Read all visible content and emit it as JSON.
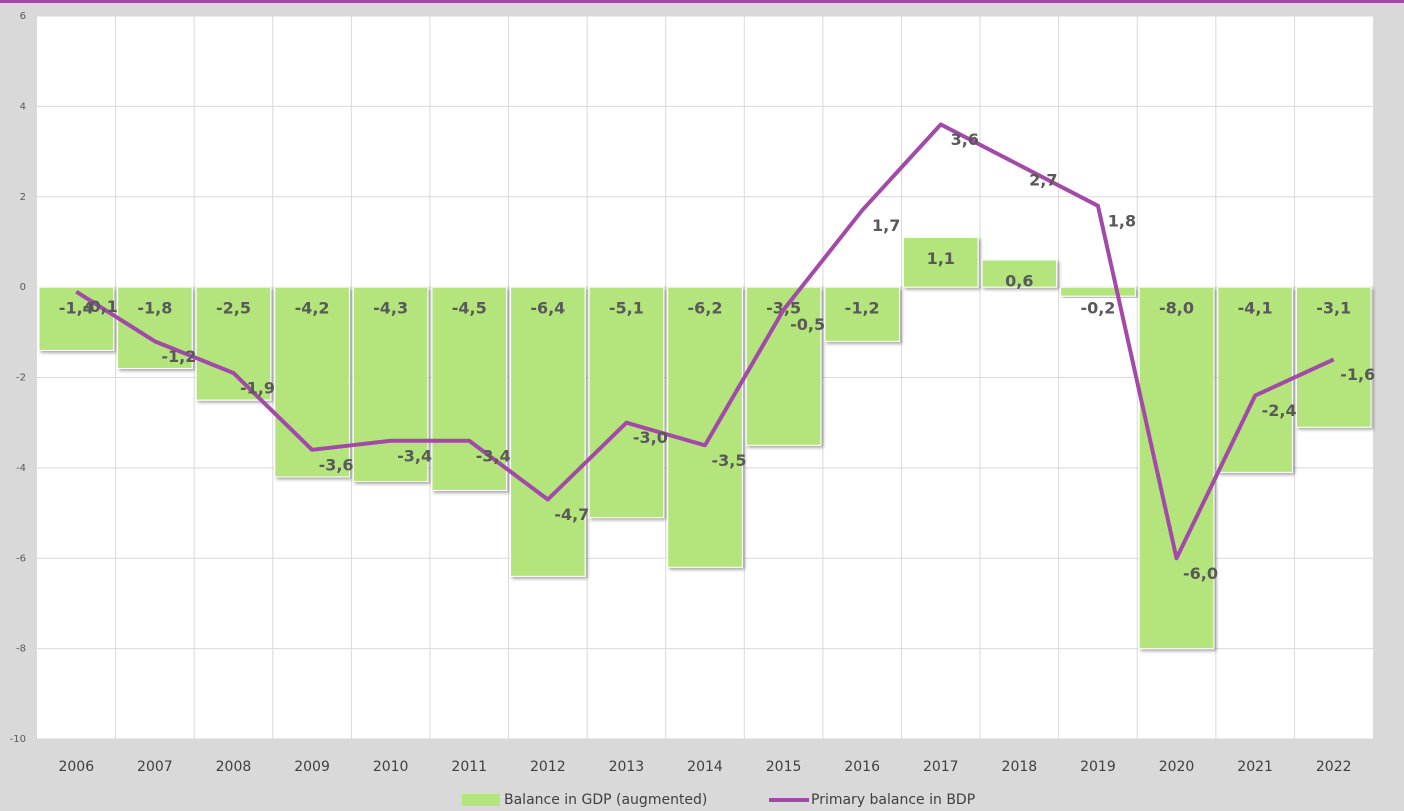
{
  "chart_data": {
    "type": "combo",
    "categories": [
      "2006",
      "2007",
      "2008",
      "2009",
      "2010",
      "2011",
      "2012",
      "2013",
      "2014",
      "2015",
      "2016",
      "2017",
      "2018",
      "2019",
      "2020",
      "2021",
      "2022"
    ],
    "series": [
      {
        "name": "Balance in GDP (augmented)",
        "type": "bar",
        "color": "#b3e57c",
        "values": [
          -1.4,
          -1.8,
          -2.5,
          -4.2,
          -4.3,
          -4.5,
          -6.4,
          -5.1,
          -6.2,
          -3.5,
          -1.2,
          1.1,
          0.6,
          -0.2,
          -8.0,
          -4.1,
          -3.1
        ],
        "value_labels": [
          "-1,4",
          "-1,8",
          "-2,5",
          "-4,2",
          "-4,3",
          "-4,5",
          "-6,4",
          "-5,1",
          "-6,2",
          "-3,5",
          "-1,2",
          "1,1",
          "0,6",
          "-0,2",
          "-8,0",
          "-4,1",
          "-3,1"
        ]
      },
      {
        "name": "Primary balance in BDP",
        "type": "line",
        "color": "#a34aa8",
        "values": [
          -0.1,
          -1.2,
          -1.9,
          -3.6,
          -3.4,
          -3.4,
          -4.7,
          -3.0,
          -3.5,
          -0.5,
          1.7,
          3.6,
          2.7,
          1.8,
          -6.0,
          -2.4,
          -1.6
        ],
        "value_labels": [
          "-0,1",
          "-1,2",
          "-1,9",
          "-3,6",
          "-3,4",
          "-3,4",
          "-4,7",
          "-3,0",
          "-3,5",
          "-0,5",
          "1,7",
          "3,6",
          "2,7",
          "1,8",
          "-6,0",
          "-2,4",
          "-1,6"
        ]
      }
    ],
    "ylim": [
      -10,
      6
    ],
    "yticks": [
      -10,
      -8,
      -6,
      -4,
      -2,
      0,
      2,
      4,
      6
    ],
    "grid": true,
    "legend": "bottom"
  }
}
